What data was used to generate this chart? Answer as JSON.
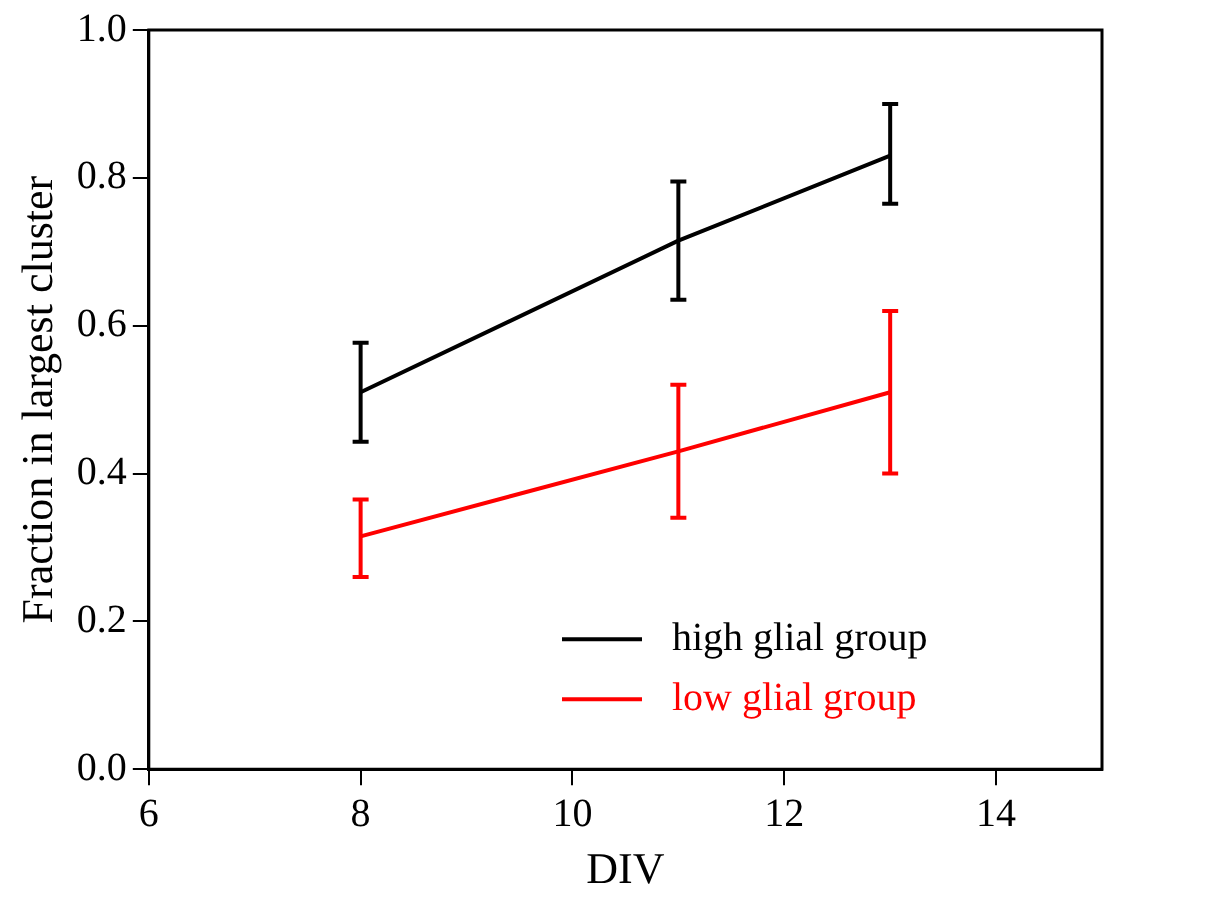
{
  "chart_data": {
    "type": "line",
    "xlabel": "DIV",
    "ylabel": "Fraction in largest cluster",
    "x": [
      8,
      11,
      13
    ],
    "series": [
      {
        "name": "high glial group",
        "color": "#000000",
        "values": [
          0.51,
          0.715,
          0.83
        ],
        "errors": [
          [
            0.443,
            0.577
          ],
          [
            0.635,
            0.795
          ],
          [
            0.765,
            0.9
          ]
        ]
      },
      {
        "name": "low glial group",
        "color": "#ff0000",
        "values": [
          0.315,
          0.43,
          0.51
        ],
        "errors": [
          [
            0.26,
            0.365
          ],
          [
            0.34,
            0.52
          ],
          [
            0.4,
            0.62
          ]
        ]
      }
    ],
    "xlim": [
      6,
      15
    ],
    "xticks": [
      6,
      8,
      10,
      12,
      14
    ],
    "ylim": [
      0,
      1
    ],
    "yticks": [
      {
        "value": 0,
        "label": "0.0"
      },
      {
        "value": 0.2,
        "label": "0.2"
      },
      {
        "value": 0.4,
        "label": "0.4"
      },
      {
        "value": 0.6,
        "label": "0.6"
      },
      {
        "value": 0.8,
        "label": "0.8"
      },
      {
        "value": 1,
        "label": "1.0"
      }
    ],
    "grid": false,
    "legend": "bottom right",
    "marker": "none",
    "line_style": "solid"
  }
}
